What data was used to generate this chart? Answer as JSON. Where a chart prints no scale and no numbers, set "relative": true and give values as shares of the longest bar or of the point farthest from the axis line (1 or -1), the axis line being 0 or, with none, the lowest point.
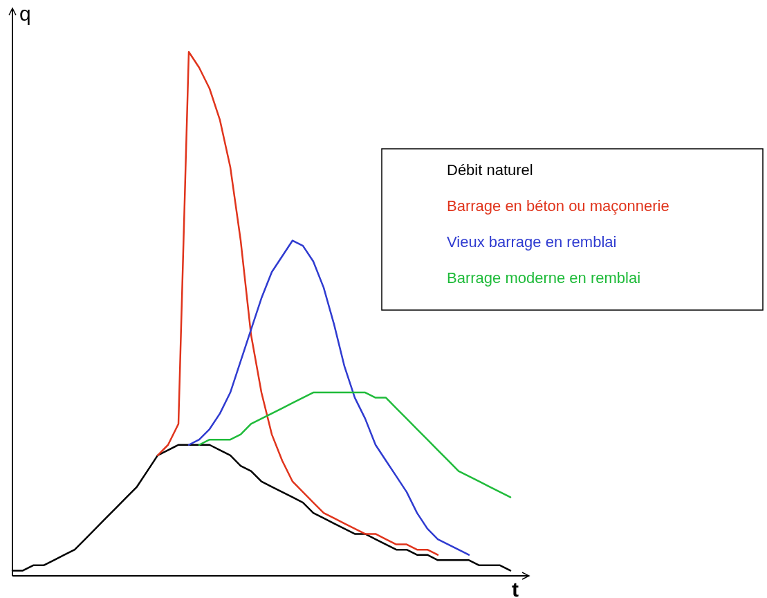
{
  "chart_data": {
    "type": "line",
    "relative": true,
    "xlabel": "t",
    "ylabel": "q",
    "legend": "top right",
    "categories": [
      null,
      null,
      null,
      null,
      null,
      null,
      null,
      null,
      null,
      null,
      null,
      null,
      null,
      null,
      null,
      null,
      null,
      null,
      null,
      null,
      null,
      null,
      null,
      null,
      null,
      null,
      null,
      null,
      null,
      null,
      null,
      null,
      null,
      null,
      null,
      null,
      null,
      null,
      null,
      null,
      null,
      null,
      null,
      null,
      null,
      null,
      null,
      null,
      null
    ],
    "series": [
      {
        "name": "Débit naturel",
        "color": "#000000",
        "values": [
          0.01,
          0.01,
          0.02,
          0.02,
          0.03,
          0.04,
          0.05,
          0.07,
          0.09,
          0.11,
          0.13,
          0.15,
          0.17,
          0.2,
          0.23,
          0.24,
          0.25,
          0.25,
          0.25,
          0.25,
          0.24,
          0.23,
          0.21,
          0.2,
          0.18,
          0.17,
          0.16,
          0.15,
          0.14,
          0.12,
          0.11,
          0.1,
          0.09,
          0.08,
          0.08,
          0.07,
          0.06,
          0.05,
          0.05,
          0.04,
          0.04,
          0.03,
          0.03,
          0.03,
          0.03,
          0.02,
          0.02,
          0.02,
          0.01
        ]
      },
      {
        "name": "Barrage en béton ou maçonnerie",
        "color": "#e0341c",
        "values": [
          null,
          null,
          null,
          null,
          null,
          null,
          null,
          null,
          null,
          null,
          null,
          null,
          null,
          null,
          0.23,
          0.25,
          0.29,
          1.0,
          0.97,
          0.93,
          0.87,
          0.78,
          0.64,
          0.46,
          0.35,
          0.27,
          0.22,
          0.18,
          0.16,
          0.14,
          0.12,
          0.11,
          0.1,
          0.09,
          0.08,
          0.08,
          0.07,
          0.06,
          0.06,
          0.05,
          0.05,
          0.04,
          null,
          null,
          null,
          null,
          null,
          null,
          null
        ]
      },
      {
        "name": "Vieux barrage en remblai",
        "color": "#2f3bd0",
        "values": [
          null,
          null,
          null,
          null,
          null,
          null,
          null,
          null,
          null,
          null,
          null,
          null,
          null,
          null,
          null,
          null,
          null,
          0.25,
          0.26,
          0.28,
          0.31,
          0.35,
          0.41,
          0.47,
          0.53,
          0.58,
          0.61,
          0.64,
          0.63,
          0.6,
          0.55,
          0.48,
          0.4,
          0.34,
          0.3,
          0.25,
          0.22,
          0.19,
          0.16,
          0.12,
          0.09,
          0.07,
          0.06,
          0.05,
          0.04,
          null,
          null,
          null,
          null
        ]
      },
      {
        "name": "Barrage moderne en remblai",
        "color": "#1fbb3a",
        "values": [
          null,
          null,
          null,
          null,
          null,
          null,
          null,
          null,
          null,
          null,
          null,
          null,
          null,
          null,
          null,
          null,
          null,
          null,
          0.25,
          0.26,
          0.26,
          0.26,
          0.27,
          0.29,
          0.3,
          0.31,
          0.32,
          0.33,
          0.34,
          0.35,
          0.35,
          0.35,
          0.35,
          0.35,
          0.35,
          0.34,
          0.34,
          0.32,
          0.3,
          0.28,
          0.26,
          0.24,
          0.22,
          0.2,
          0.19,
          0.18,
          0.17,
          0.16,
          0.15
        ]
      }
    ]
  }
}
